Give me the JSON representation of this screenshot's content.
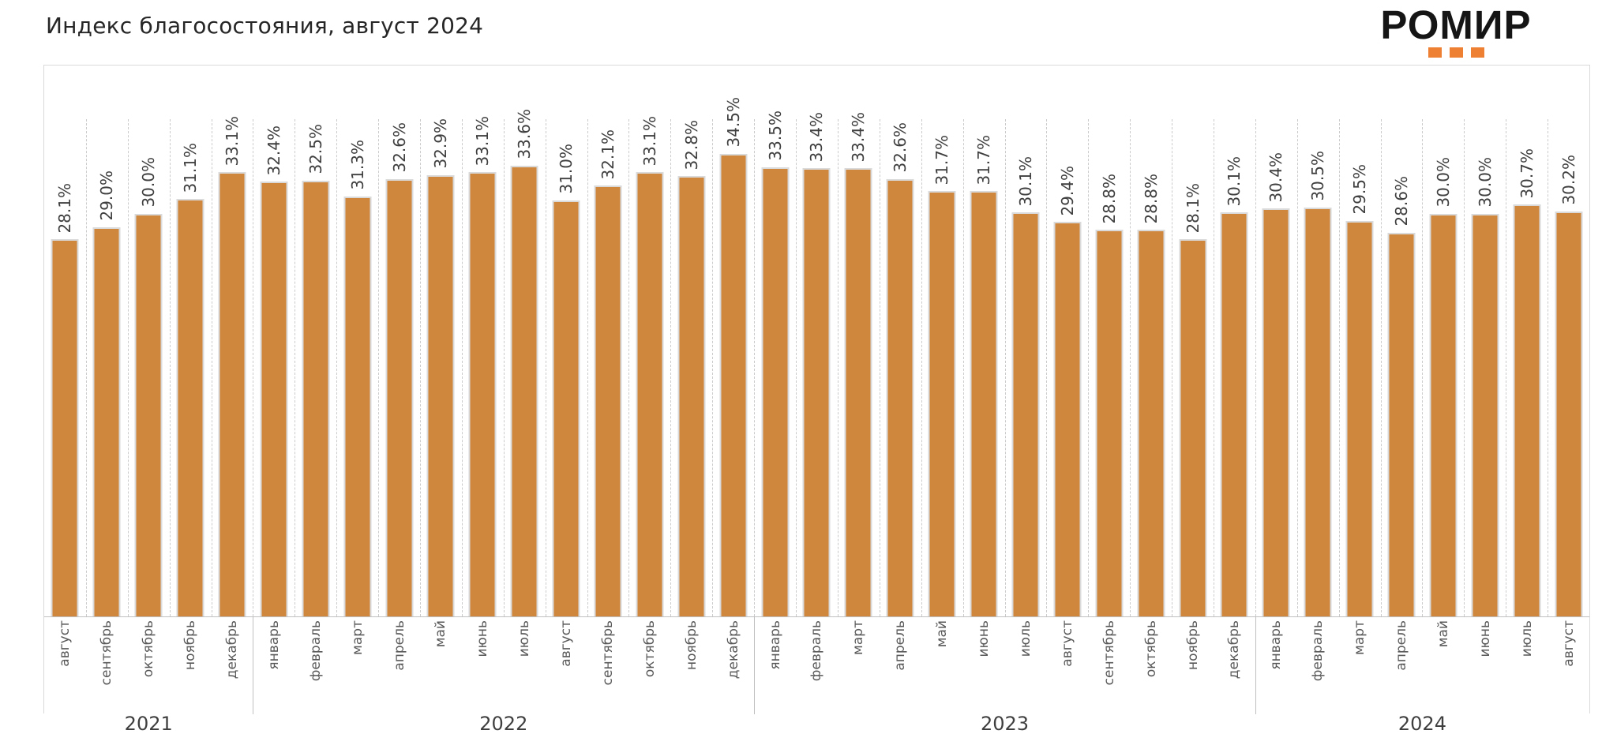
{
  "header": {
    "title": "Индекс благосостояния, август 2024"
  },
  "logo": {
    "text": "РОМИР",
    "accent_color": "#EE8033",
    "square_count": 3
  },
  "chart_data": {
    "type": "bar",
    "title": "Индекс благосостояния, август 2024",
    "value_suffix": "%",
    "ylim": [
      0,
      37
    ],
    "y_axis_labels": "hidden",
    "legend": "none",
    "grid": "dashed vertical lines between categories",
    "bar_color": "#CE873D",
    "groups": [
      {
        "year": "2021",
        "categories": [
          "август",
          "сентябрь",
          "октябрь",
          "ноябрь",
          "декабрь"
        ],
        "values": [
          28.1,
          29.0,
          30.0,
          31.1,
          33.1
        ],
        "labels": [
          "28.1%",
          "29.0%",
          "30.0%",
          "31.1%",
          "33.1%"
        ]
      },
      {
        "year": "2022",
        "categories": [
          "январь",
          "февраль",
          "март",
          "апрель",
          "май",
          "июнь",
          "июль",
          "август",
          "сентябрь",
          "октябрь",
          "ноябрь",
          "декабрь"
        ],
        "values": [
          32.4,
          32.5,
          31.3,
          32.6,
          32.9,
          33.1,
          33.6,
          31.0,
          32.1,
          33.1,
          32.8,
          34.5
        ],
        "labels": [
          "32.4%",
          "32.5%",
          "31.3%",
          "32.6%",
          "32.9%",
          "33.1%",
          "33.6%",
          "31.0%",
          "32.1%",
          "33.1%",
          "32.8%",
          "34.5%"
        ]
      },
      {
        "year": "2023",
        "categories": [
          "январь",
          "февраль",
          "март",
          "апрель",
          "май",
          "июнь",
          "июль",
          "август",
          "сентябрь",
          "октябрь",
          "ноябрь",
          "декабрь"
        ],
        "values": [
          33.5,
          33.4,
          33.4,
          32.6,
          31.7,
          31.7,
          30.1,
          29.4,
          28.8,
          28.8,
          28.1,
          30.1
        ],
        "labels": [
          "33.5%",
          "33.4%",
          "33.4%",
          "32.6%",
          "31.7%",
          "31.7%",
          "30.1%",
          "29.4%",
          "28.8%",
          "28.8%",
          "28.1%",
          "30.1%"
        ]
      },
      {
        "year": "2024",
        "categories": [
          "январь",
          "февраль",
          "март",
          "апрель",
          "май",
          "июнь",
          "июль",
          "август"
        ],
        "values": [
          30.4,
          30.5,
          29.5,
          28.6,
          30.0,
          30.0,
          30.7,
          30.2
        ],
        "labels": [
          "30.4%",
          "30.5%",
          "29.5%",
          "28.6%",
          "30.0%",
          "30.0%",
          "30.7%",
          "30.2%"
        ]
      }
    ]
  }
}
